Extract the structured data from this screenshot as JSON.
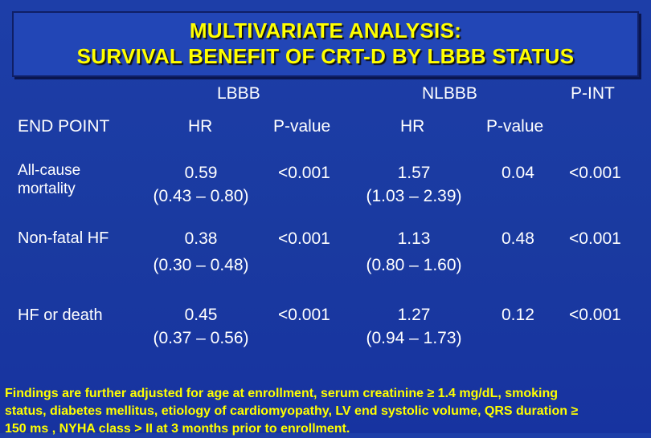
{
  "title": {
    "line1": "MULTIVARIATE ANALYSIS:",
    "line2": "SURVIVAL BENEFIT OF CRT-D BY LBBB STATUS"
  },
  "table": {
    "group_headers": {
      "lbbb": "LBBB",
      "nlbbb": "NLBBB",
      "pint": "P-INT"
    },
    "columns": {
      "endpoint": "END POINT",
      "hr1": "HR",
      "p1": "P-value",
      "hr2": "HR",
      "p2": "P-value"
    },
    "rows": [
      {
        "endpoint_line1": "All-cause",
        "endpoint_line2": "mortality",
        "lbbb_hr": "0.59",
        "lbbb_ci": "(0.43 – 0.80)",
        "lbbb_p": "<0.001",
        "nlbbb_hr": "1.57",
        "nlbbb_ci": "(1.03 – 2.39)",
        "nlbbb_p": "0.04",
        "p_int": "<0.001"
      },
      {
        "endpoint_line1": "Non-fatal HF",
        "endpoint_line2": "",
        "lbbb_hr": "0.38",
        "lbbb_ci": "(0.30 – 0.48)",
        "lbbb_p": "<0.001",
        "nlbbb_hr": "1.13",
        "nlbbb_ci": "(0.80 – 1.60)",
        "nlbbb_p": "0.48",
        "p_int": "<0.001"
      },
      {
        "endpoint_line1": "HF or death",
        "endpoint_line2": "",
        "lbbb_hr": "0.45",
        "lbbb_ci": "(0.37 – 0.56)",
        "lbbb_p": "<0.001",
        "nlbbb_hr": "1.27",
        "nlbbb_ci": "(0.94 – 1.73)",
        "nlbbb_p": "0.12",
        "p_int": "<0.001"
      }
    ]
  },
  "footnote": {
    "line1": "Findings are further adjusted for age at enrollment, serum creatinine ≥ 1.4 mg/dL, smoking",
    "line2": "status, diabetes mellitus, etiology of cardiomyopathy, LV end systolic volume, QRS duration ≥",
    "line3": "150 ms , NYHA class > II at 3 months prior to enrollment."
  }
}
